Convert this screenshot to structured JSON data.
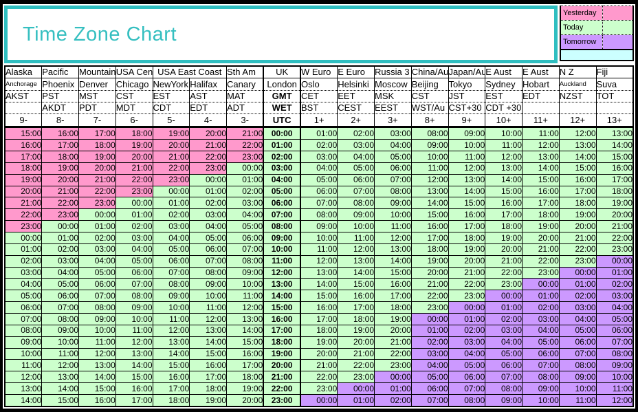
{
  "colors": {
    "yesterday": "#FF99CC",
    "today": "#CCFFCC",
    "tomorrow": "#CC99FF",
    "strip": "#CCFFFF",
    "accent": "#35BFC0",
    "accent_border": "#2FBEC0"
  },
  "chart_data": {
    "type": "table",
    "title": "Time Zone Chart",
    "legend": [
      {
        "label": "Yesterday",
        "color": "#FF99CC"
      },
      {
        "label": "Today",
        "color": "#CCFFCC"
      },
      {
        "label": "Tomorrow",
        "color": "#CC99FF"
      }
    ],
    "header": {
      "regions": [
        {
          "label": "Alaska",
          "span": 1
        },
        {
          "label": "Pacific",
          "span": 1
        },
        {
          "label": "Mountain",
          "span": 1
        },
        {
          "label": "USA Cen",
          "span": 1
        },
        {
          "label": "USA East Coast",
          "span": 2
        },
        {
          "label": "Sth Am",
          "span": 1
        },
        {
          "label": "UK",
          "span": 1
        },
        {
          "label": "W Euro",
          "span": 1
        },
        {
          "label": "E Euro",
          "span": 1
        },
        {
          "label": "Russia 3",
          "span": 1
        },
        {
          "label": "China/Au",
          "span": 1
        },
        {
          "label": "Japan/Au",
          "span": 1
        },
        {
          "label": "E Aust",
          "span": 1
        },
        {
          "label": "E Aust",
          "span": 1
        },
        {
          "label": "N Z",
          "span": 1
        },
        {
          "label": "Fiji",
          "span": 1
        }
      ],
      "cities": [
        "Anchorage",
        "Phoenix",
        "Denver",
        "Chicago",
        "NewYork",
        "Halifax",
        "Canary",
        "London",
        "Oslo",
        "Helsinki",
        "Moscow",
        "Beijing",
        "Tokyo",
        "Sydney",
        "Hobart",
        "Auckland",
        "Suva"
      ],
      "shrunk_city_indices": [
        0,
        15
      ],
      "std_abbrs": [
        "AKST",
        "PST",
        "MST",
        "CST",
        "EST",
        "AST",
        "MAT",
        "GMT",
        "CET",
        "EET",
        "MSK",
        "CST",
        "JST",
        "EST",
        "EDT",
        "NZST",
        "TOT"
      ],
      "dst_abbrs": [
        "",
        "AKDT",
        "PDT",
        "MDT",
        "CDT",
        "EDT",
        "ADT",
        "WET",
        "BST",
        "CEST",
        "EEST",
        "WST/Au",
        "CST+30",
        "CDT +30",
        "",
        "",
        ""
      ],
      "offset_labels": [
        "9-",
        "8-",
        "7-",
        "6-",
        "5-",
        "4-",
        "3-",
        "UTC",
        "1+",
        "2+",
        "3+",
        "8+",
        "9+",
        "10+",
        "11+",
        "12+",
        "13+"
      ]
    },
    "utc_offsets": [
      -9,
      -8,
      -7,
      -6,
      -5,
      -4,
      -3,
      0,
      1,
      2,
      3,
      8,
      9,
      10,
      11,
      12,
      13
    ],
    "utc_column_index": 7,
    "rows": [
      [
        "15:00",
        "16:00",
        "17:00",
        "18:00",
        "19:00",
        "20:00",
        "21:00",
        "00:00",
        "01:00",
        "02:00",
        "03:00",
        "08:00",
        "09:00",
        "10:00",
        "11:00",
        "12:00",
        "13:00"
      ],
      [
        "16:00",
        "17:00",
        "18:00",
        "19:00",
        "20:00",
        "21:00",
        "22:00",
        "01:00",
        "02:00",
        "03:00",
        "04:00",
        "09:00",
        "10:00",
        "11:00",
        "12:00",
        "13:00",
        "14:00"
      ],
      [
        "17:00",
        "18:00",
        "19:00",
        "20:00",
        "21:00",
        "22:00",
        "23:00",
        "02:00",
        "03:00",
        "04:00",
        "05:00",
        "10:00",
        "11:00",
        "12:00",
        "13:00",
        "14:00",
        "15:00"
      ],
      [
        "18:00",
        "19:00",
        "20:00",
        "21:00",
        "22:00",
        "23:00",
        "00:00",
        "03:00",
        "04:00",
        "05:00",
        "06:00",
        "11:00",
        "12:00",
        "13:00",
        "14:00",
        "15:00",
        "16:00"
      ],
      [
        "19:00",
        "20:00",
        "21:00",
        "22:00",
        "23:00",
        "00:00",
        "01:00",
        "04:00",
        "05:00",
        "06:00",
        "07:00",
        "12:00",
        "13:00",
        "14:00",
        "15:00",
        "16:00",
        "17:00"
      ],
      [
        "20:00",
        "21:00",
        "22:00",
        "23:00",
        "00:00",
        "01:00",
        "02:00",
        "05:00",
        "06:00",
        "07:00",
        "08:00",
        "13:00",
        "14:00",
        "15:00",
        "16:00",
        "17:00",
        "18:00"
      ],
      [
        "21:00",
        "22:00",
        "23:00",
        "00:00",
        "01:00",
        "02:00",
        "03:00",
        "06:00",
        "07:00",
        "08:00",
        "09:00",
        "14:00",
        "15:00",
        "16:00",
        "17:00",
        "18:00",
        "19:00"
      ],
      [
        "22:00",
        "23:00",
        "00:00",
        "01:00",
        "02:00",
        "03:00",
        "04:00",
        "07:00",
        "08:00",
        "09:00",
        "10:00",
        "15:00",
        "16:00",
        "17:00",
        "18:00",
        "19:00",
        "20:00"
      ],
      [
        "23:00",
        "00:00",
        "01:00",
        "02:00",
        "03:00",
        "04:00",
        "05:00",
        "08:00",
        "09:00",
        "10:00",
        "11:00",
        "16:00",
        "17:00",
        "18:00",
        "19:00",
        "20:00",
        "21:00"
      ],
      [
        "00:00",
        "01:00",
        "02:00",
        "03:00",
        "04:00",
        "05:00",
        "06:00",
        "09:00",
        "10:00",
        "11:00",
        "12:00",
        "17:00",
        "18:00",
        "19:00",
        "20:00",
        "21:00",
        "22:00"
      ],
      [
        "01:00",
        "02:00",
        "03:00",
        "04:00",
        "05:00",
        "06:00",
        "07:00",
        "10:00",
        "11:00",
        "12:00",
        "13:00",
        "18:00",
        "19:00",
        "20:00",
        "21:00",
        "22:00",
        "23:00"
      ],
      [
        "02:00",
        "03:00",
        "04:00",
        "05:00",
        "06:00",
        "07:00",
        "08:00",
        "11:00",
        "12:00",
        "13:00",
        "14:00",
        "19:00",
        "20:00",
        "21:00",
        "22:00",
        "23:00",
        "00:00"
      ],
      [
        "03:00",
        "04:00",
        "05:00",
        "06:00",
        "07:00",
        "08:00",
        "09:00",
        "12:00",
        "13:00",
        "14:00",
        "15:00",
        "20:00",
        "21:00",
        "22:00",
        "23:00",
        "00:00",
        "01:00"
      ],
      [
        "04:00",
        "05:00",
        "06:00",
        "07:00",
        "08:00",
        "09:00",
        "10:00",
        "13:00",
        "14:00",
        "15:00",
        "16:00",
        "21:00",
        "22:00",
        "23:00",
        "00:00",
        "01:00",
        "02:00"
      ],
      [
        "05:00",
        "06:00",
        "07:00",
        "08:00",
        "09:00",
        "10:00",
        "11:00",
        "14:00",
        "15:00",
        "16:00",
        "17:00",
        "22:00",
        "23:00",
        "00:00",
        "01:00",
        "02:00",
        "03:00"
      ],
      [
        "06:00",
        "07:00",
        "08:00",
        "09:00",
        "10:00",
        "11:00",
        "12:00",
        "15:00",
        "16:00",
        "17:00",
        "18:00",
        "23:00",
        "00:00",
        "01:00",
        "02:00",
        "03:00",
        "04:00"
      ],
      [
        "07:00",
        "08:00",
        "09:00",
        "10:00",
        "11:00",
        "12:00",
        "13:00",
        "16:00",
        "17:00",
        "18:00",
        "19:00",
        "00:00",
        "01:00",
        "02:00",
        "03:00",
        "04:00",
        "05:00"
      ],
      [
        "08:00",
        "09:00",
        "10:00",
        "11:00",
        "12:00",
        "13:00",
        "14:00",
        "17:00",
        "18:00",
        "19:00",
        "20:00",
        "01:00",
        "02:00",
        "03:00",
        "04:00",
        "05:00",
        "06:00"
      ],
      [
        "09:00",
        "10:00",
        "11:00",
        "12:00",
        "13:00",
        "14:00",
        "15:00",
        "18:00",
        "19:00",
        "20:00",
        "21:00",
        "02:00",
        "03:00",
        "04:00",
        "05:00",
        "06:00",
        "07:00"
      ],
      [
        "10:00",
        "11:00",
        "12:00",
        "13:00",
        "14:00",
        "15:00",
        "16:00",
        "19:00",
        "20:00",
        "21:00",
        "22:00",
        "03:00",
        "04:00",
        "05:00",
        "06:00",
        "07:00",
        "08:00"
      ],
      [
        "11:00",
        "12:00",
        "13:00",
        "14:00",
        "15:00",
        "16:00",
        "17:00",
        "20:00",
        "21:00",
        "22:00",
        "23:00",
        "04:00",
        "05:00",
        "06:00",
        "07:00",
        "08:00",
        "09:00"
      ],
      [
        "12:00",
        "13:00",
        "14:00",
        "15:00",
        "16:00",
        "17:00",
        "18:00",
        "21:00",
        "22:00",
        "23:00",
        "00:00",
        "05:00",
        "06:00",
        "07:00",
        "08:00",
        "09:00",
        "10:00"
      ],
      [
        "13:00",
        "14:00",
        "15:00",
        "16:00",
        "17:00",
        "18:00",
        "19:00",
        "22:00",
        "23:00",
        "00:00",
        "01:00",
        "06:00",
        "07:00",
        "08:00",
        "09:00",
        "10:00",
        "11:00"
      ],
      [
        "14:00",
        "15:00",
        "16:00",
        "17:00",
        "18:00",
        "19:00",
        "20:00",
        "23:00",
        "00:00",
        "01:00",
        "02:00",
        "07:00",
        "08:00",
        "09:00",
        "10:00",
        "11:00",
        "12:00"
      ]
    ]
  }
}
